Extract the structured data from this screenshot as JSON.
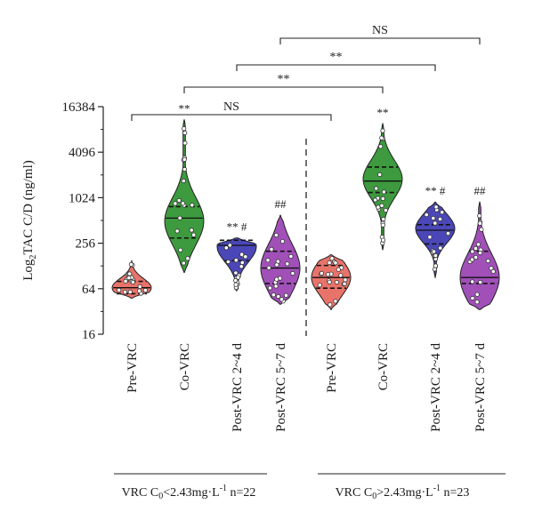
{
  "chart_data": {
    "type": "violin",
    "ylabel": {
      "main": "Log",
      "sub": "2",
      "rest": "TAC C/D (ng/ml)"
    },
    "y_scale": "log2",
    "ylim": [
      16,
      16384
    ],
    "yticks": [
      16,
      64,
      256,
      1024,
      4096,
      16384
    ],
    "ytick_labels": [
      "16",
      "64",
      "256",
      "1024",
      "4096",
      "16384"
    ],
    "groups": [
      {
        "label": {
          "prefix": "VRC C",
          "sub": "0",
          "mid": "<2.43mg·L",
          "sup": "-1",
          "suffix": " n=22"
        },
        "categories": [
          "Pre-VRC",
          "Co-VRC",
          "Post-VRC 2~4 d",
          "Post-VRC 5~7 d"
        ]
      },
      {
        "label": {
          "prefix": "VRC C",
          "sub": "0",
          "mid": ">2.43mg·L",
          "sup": "-1",
          "suffix": " n=23"
        },
        "categories": [
          "Pre-VRC",
          "Co-VRC",
          "Post-VRC 2~4 d",
          "Post-VRC 5~7 d"
        ]
      }
    ],
    "violins": [
      {
        "group": 0,
        "category": "Pre-VRC",
        "color": "#e8736a",
        "min": 48,
        "q1": 55,
        "median": 66,
        "q3": 80,
        "max": 150,
        "mode": 66,
        "sig": ""
      },
      {
        "group": 0,
        "category": "Co-VRC",
        "color": "#3d9a3e",
        "min": 105,
        "q1": 300,
        "median": 550,
        "q3": 780,
        "max": 11000,
        "mode": 500,
        "sig": "**"
      },
      {
        "group": 0,
        "category": "Post-VRC 2~4 d",
        "color": "#4b47b8",
        "min": 60,
        "q1": 150,
        "median": 240,
        "q3": 280,
        "max": 300,
        "mode": 230,
        "sig": "** #"
      },
      {
        "group": 0,
        "category": "Post-VRC 5~7 d",
        "color": "#a150b8",
        "min": 40,
        "q1": 75,
        "median": 120,
        "q3": 200,
        "max": 600,
        "mode": 120,
        "sig": "##"
      },
      {
        "group": 1,
        "category": "Pre-VRC",
        "color": "#e8736a",
        "min": 34,
        "q1": 65,
        "median": 90,
        "q3": 130,
        "max": 180,
        "mode": 90,
        "sig": ""
      },
      {
        "group": 1,
        "category": "Co-VRC",
        "color": "#3d9a3e",
        "min": 210,
        "q1": 1200,
        "median": 1700,
        "q3": 2600,
        "max": 9800,
        "mode": 1800,
        "sig": "**"
      },
      {
        "group": 1,
        "category": "Post-VRC 2~4 d",
        "color": "#4b47b8",
        "min": 90,
        "q1": 250,
        "median": 380,
        "q3": 450,
        "max": 900,
        "mode": 400,
        "sig": "** #"
      },
      {
        "group": 1,
        "category": "Post-VRC 5~7 d",
        "color": "#a150b8",
        "min": 34,
        "q1": 75,
        "median": 90,
        "q3": 200,
        "max": 900,
        "mode": 90,
        "sig": "##"
      }
    ],
    "brackets": [
      {
        "from": [
          0,
          "Pre-VRC"
        ],
        "to": [
          1,
          "Pre-VRC"
        ],
        "label": "NS"
      },
      {
        "from": [
          0,
          "Co-VRC"
        ],
        "to": [
          1,
          "Co-VRC"
        ],
        "label": "**"
      },
      {
        "from": [
          0,
          "Post-VRC 2~4 d"
        ],
        "to": [
          1,
          "Post-VRC 2~4 d"
        ],
        "label": "**"
      },
      {
        "from": [
          0,
          "Post-VRC 5~7 d"
        ],
        "to": [
          1,
          "Post-VRC 5~7 d"
        ],
        "label": "NS"
      }
    ],
    "grid": false,
    "legend": "none"
  }
}
